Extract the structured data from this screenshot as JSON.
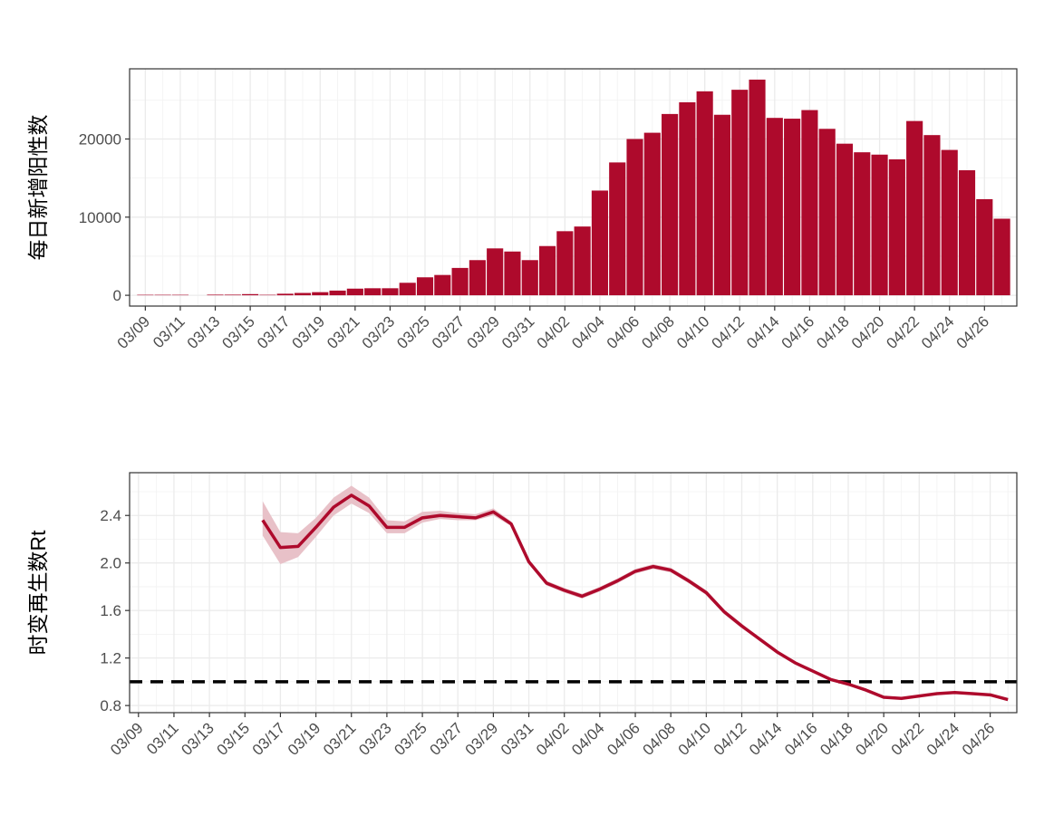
{
  "chart_data": [
    {
      "type": "bar",
      "y_label": "每日新增阳性数",
      "categories": [
        "03/09",
        null,
        "03/11",
        null,
        "03/13",
        null,
        "03/15",
        null,
        "03/17",
        null,
        "03/19",
        null,
        "03/21",
        null,
        "03/23",
        null,
        "03/25",
        null,
        "03/27",
        null,
        "03/29",
        null,
        "03/31",
        null,
        "04/02",
        null,
        "04/04",
        null,
        "04/06",
        null,
        "04/08",
        null,
        "04/10",
        null,
        "04/12",
        null,
        "04/14",
        null,
        "04/16",
        null,
        "04/18",
        null,
        "04/20",
        null,
        "04/22",
        null,
        "04/24",
        null,
        "04/26",
        null
      ],
      "values": [
        60,
        60,
        60,
        0,
        80,
        80,
        150,
        60,
        200,
        300,
        400,
        600,
        850,
        900,
        900,
        1600,
        2300,
        2600,
        3500,
        4500,
        6000,
        5600,
        4500,
        6300,
        8200,
        8800,
        13400,
        17000,
        20000,
        20800,
        23200,
        24700,
        26100,
        23100,
        26300,
        27600,
        22700,
        22600,
        23700,
        21300,
        19400,
        18300,
        18000,
        17400,
        22300,
        20500,
        18600,
        16000,
        12300,
        9800
      ],
      "color": "#ae0a2c",
      "ylim": [
        -1380,
        28980
      ],
      "yticks": [
        0,
        10000,
        20000
      ],
      "minor_yticks": [
        5000,
        15000,
        25000
      ],
      "grid": true
    },
    {
      "type": "line",
      "y_label": "时变再生数Rt",
      "categories": [
        "03/09",
        null,
        "03/11",
        null,
        "03/13",
        null,
        "03/15",
        null,
        "03/17",
        null,
        "03/19",
        null,
        "03/21",
        null,
        "03/23",
        null,
        "03/25",
        null,
        "03/27",
        null,
        "03/29",
        null,
        "03/31",
        null,
        "04/02",
        null,
        "04/04",
        null,
        "04/06",
        null,
        "04/08",
        null,
        "04/10",
        null,
        "04/12",
        null,
        "04/14",
        null,
        "04/16",
        null,
        "04/18",
        null,
        "04/20",
        null,
        "04/22",
        null,
        "04/24",
        null,
        "04/26",
        null
      ],
      "values": [
        null,
        null,
        null,
        null,
        null,
        null,
        null,
        2.36,
        2.13,
        2.14,
        2.3,
        2.47,
        2.57,
        2.48,
        2.3,
        2.3,
        2.38,
        2.4,
        2.39,
        2.38,
        2.43,
        2.33,
        2.01,
        1.83,
        1.77,
        1.72,
        1.78,
        1.85,
        1.93,
        1.97,
        1.94,
        1.85,
        1.75,
        1.59,
        1.47,
        1.36,
        1.25,
        1.16,
        1.09,
        1.02,
        0.98,
        0.93,
        0.87,
        0.86,
        0.88,
        0.9,
        0.91,
        0.9,
        0.89,
        0.85
      ],
      "lower": [
        null,
        null,
        null,
        null,
        null,
        null,
        null,
        2.23,
        1.99,
        2.05,
        2.22,
        2.4,
        2.5,
        2.42,
        2.25,
        2.25,
        2.34,
        2.37,
        2.36,
        2.36,
        2.4,
        2.31,
        1.99,
        1.81,
        1.75,
        1.7,
        1.76,
        1.83,
        1.91,
        1.95,
        1.92,
        1.83,
        1.73,
        1.57,
        1.45,
        1.35,
        1.24,
        1.15,
        1.08,
        1.01,
        0.97,
        0.92,
        0.86,
        0.85,
        0.87,
        0.89,
        0.9,
        0.89,
        0.88,
        0.84
      ],
      "upper": [
        null,
        null,
        null,
        null,
        null,
        null,
        null,
        2.52,
        2.26,
        2.25,
        2.38,
        2.55,
        2.65,
        2.55,
        2.36,
        2.35,
        2.43,
        2.44,
        2.42,
        2.41,
        2.46,
        2.35,
        2.03,
        1.85,
        1.79,
        1.74,
        1.8,
        1.87,
        1.95,
        1.99,
        1.96,
        1.87,
        1.77,
        1.61,
        1.49,
        1.37,
        1.26,
        1.17,
        1.1,
        1.03,
        0.99,
        0.94,
        0.88,
        0.87,
        0.89,
        0.91,
        0.92,
        0.91,
        0.9,
        0.86
      ],
      "color": "#ae0a2c",
      "band_color": "#e8c1c8",
      "reference_line": 1,
      "reference_color": "#000000",
      "ylim": [
        0.74,
        2.76
      ],
      "yticks": [
        0.8,
        1.2,
        1.6,
        {
          "value": 2,
          "label": "2.0"
        },
        2.4
      ],
      "minor_yticks": [
        1.0,
        1.4,
        1.8,
        2.2,
        2.6
      ],
      "grid": true
    }
  ]
}
